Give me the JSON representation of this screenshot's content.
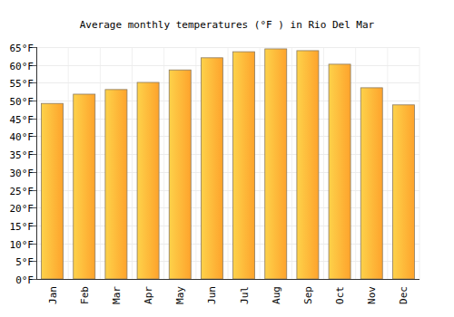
{
  "chart_data": {
    "type": "bar",
    "title": "Average monthly temperatures (°F ) in Rio Del Mar",
    "categories": [
      "Jan",
      "Feb",
      "Mar",
      "Apr",
      "May",
      "Jun",
      "Jul",
      "Aug",
      "Sep",
      "Oct",
      "Nov",
      "Dec"
    ],
    "values": [
      49.2,
      51.8,
      53.1,
      55.1,
      58.6,
      62.0,
      63.7,
      64.5,
      64.0,
      60.2,
      53.6,
      48.8
    ],
    "color": "#fea32c",
    "ylim": [
      0,
      65
    ],
    "yticks": [
      {
        "value": 0,
        "label": "0°F"
      },
      {
        "value": 5,
        "label": "5°F"
      },
      {
        "value": 10,
        "label": "10°F"
      },
      {
        "value": 15,
        "label": "15°F"
      },
      {
        "value": 20,
        "label": "20°F"
      },
      {
        "value": 25,
        "label": "25°F"
      },
      {
        "value": 30,
        "label": "30°F"
      },
      {
        "value": 35,
        "label": "35°F"
      },
      {
        "value": 40,
        "label": "40°F"
      },
      {
        "value": 45,
        "label": "45°F"
      },
      {
        "value": 50,
        "label": "50°F"
      },
      {
        "value": 55,
        "label": "55°F"
      },
      {
        "value": 60,
        "label": "60°F"
      },
      {
        "value": 65,
        "label": "65°F"
      }
    ],
    "grid": true
  }
}
